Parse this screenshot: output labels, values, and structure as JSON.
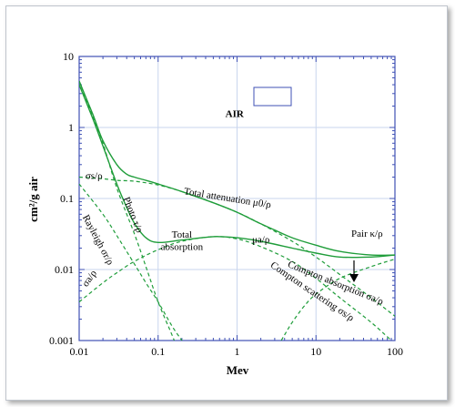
{
  "chart_data": {
    "type": "line",
    "title": "AIR",
    "xlabel": "Mev",
    "ylabel": "cm²/g air",
    "x_scale": "log",
    "y_scale": "log",
    "xlim": [
      0.01,
      100
    ],
    "ylim": [
      0.001,
      10
    ],
    "grid": true,
    "x_ticks": [
      {
        "value": 0.01,
        "label": "0.01"
      },
      {
        "value": 0.1,
        "label": "0.1"
      },
      {
        "value": 1,
        "label": "1"
      },
      {
        "value": 10,
        "label": "10"
      },
      {
        "value": 100,
        "label": "100"
      }
    ],
    "y_ticks": [
      {
        "value": 0.001,
        "label": "0.001"
      },
      {
        "value": 0.01,
        "label": "0.01"
      },
      {
        "value": 0.1,
        "label": "0.1"
      },
      {
        "value": 1,
        "label": "1"
      },
      {
        "value": 10,
        "label": "10"
      }
    ],
    "colors": {
      "curve": "#1f9d3a",
      "grid": "#c9d6ee",
      "border": "#3f51b5"
    },
    "series": [
      {
        "style": "solid",
        "points": [
          [
            0.01,
            4.5
          ],
          [
            0.015,
            1.5
          ],
          [
            0.02,
            0.65
          ],
          [
            0.03,
            0.3
          ],
          [
            0.04,
            0.22
          ],
          [
            0.05,
            0.2
          ],
          [
            0.07,
            0.18
          ],
          [
            0.1,
            0.16
          ],
          [
            0.2,
            0.125
          ],
          [
            0.5,
            0.087
          ],
          [
            1,
            0.064
          ],
          [
            2,
            0.044
          ],
          [
            3,
            0.036
          ],
          [
            5,
            0.028
          ],
          [
            10,
            0.022
          ],
          [
            20,
            0.018
          ],
          [
            50,
            0.016
          ],
          [
            100,
            0.016
          ]
        ]
      },
      {
        "style": "solid",
        "points": [
          [
            0.01,
            4.0
          ],
          [
            0.015,
            1.3
          ],
          [
            0.02,
            0.55
          ],
          [
            0.03,
            0.16
          ],
          [
            0.04,
            0.075
          ],
          [
            0.05,
            0.045
          ],
          [
            0.07,
            0.028
          ],
          [
            0.1,
            0.024
          ],
          [
            0.2,
            0.026
          ],
          [
            0.5,
            0.029
          ],
          [
            1,
            0.028
          ],
          [
            2,
            0.025
          ],
          [
            5,
            0.02
          ],
          [
            10,
            0.017
          ],
          [
            20,
            0.015
          ],
          [
            50,
            0.015
          ],
          [
            100,
            0.016
          ]
        ]
      },
      {
        "style": "dashed",
        "points": [
          [
            0.01,
            4.5
          ],
          [
            0.015,
            1.4
          ],
          [
            0.02,
            0.6
          ],
          [
            0.03,
            0.14
          ],
          [
            0.05,
            0.032
          ],
          [
            0.07,
            0.011
          ],
          [
            0.1,
            0.0035
          ],
          [
            0.15,
            0.0012
          ],
          [
            0.18,
            0.0007
          ]
        ]
      },
      {
        "style": "dashed",
        "points": [
          [
            0.01,
            0.2
          ],
          [
            0.02,
            0.19
          ],
          [
            0.03,
            0.18
          ],
          [
            0.05,
            0.175
          ],
          [
            0.1,
            0.155
          ],
          [
            0.2,
            0.125
          ],
          [
            0.5,
            0.087
          ],
          [
            1,
            0.064
          ],
          [
            2,
            0.044
          ],
          [
            5,
            0.025
          ],
          [
            10,
            0.015
          ],
          [
            20,
            0.0085
          ],
          [
            50,
            0.004
          ],
          [
            100,
            0.0022
          ]
        ]
      },
      {
        "style": "dashed",
        "points": [
          [
            0.01,
            0.16
          ],
          [
            0.02,
            0.06
          ],
          [
            0.03,
            0.03
          ],
          [
            0.05,
            0.012
          ],
          [
            0.07,
            0.0065
          ],
          [
            0.1,
            0.0035
          ],
          [
            0.15,
            0.0016
          ],
          [
            0.2,
            0.001
          ],
          [
            0.25,
            0.0007
          ]
        ]
      },
      {
        "style": "dashed",
        "points": [
          [
            0.01,
            0.0035
          ],
          [
            0.02,
            0.0065
          ],
          [
            0.03,
            0.009
          ],
          [
            0.05,
            0.013
          ],
          [
            0.1,
            0.019
          ],
          [
            0.2,
            0.025
          ],
          [
            0.5,
            0.029
          ],
          [
            1,
            0.027
          ],
          [
            2,
            0.021
          ],
          [
            5,
            0.013
          ],
          [
            10,
            0.0075
          ],
          [
            20,
            0.004
          ],
          [
            50,
            0.0018
          ],
          [
            100,
            0.0009
          ]
        ]
      },
      {
        "style": "dashed",
        "points": [
          [
            3,
            0.0007
          ],
          [
            4,
            0.0012
          ],
          [
            5,
            0.0018
          ],
          [
            7,
            0.003
          ],
          [
            10,
            0.0045
          ],
          [
            20,
            0.0075
          ],
          [
            50,
            0.011
          ],
          [
            100,
            0.014
          ]
        ]
      }
    ],
    "annotations": [
      {
        "id": "air",
        "text": "AIR",
        "x": 0.93,
        "y": 1.4
      },
      {
        "id": "sigs",
        "text": "σs/ρ",
        "x": 0.012,
        "y": 0.19
      },
      {
        "id": "totatt",
        "text": "Total attenuation μ0/ρ",
        "x": 0.21,
        "y": 0.115,
        "rotate": 9
      },
      {
        "id": "rayl",
        "text": "Rayleigh σr/ρ",
        "x": 0.011,
        "y": 0.055,
        "rotate": 62
      },
      {
        "id": "photo",
        "text": "Photo τ/ρ",
        "x": 0.036,
        "y": 0.1,
        "rotate": 68
      },
      {
        "id": "totabs1",
        "text": "Total",
        "x": 0.2,
        "y": 0.028
      },
      {
        "id": "totabs2",
        "text": "absorption",
        "x": 0.2,
        "y": 0.019
      },
      {
        "id": "mua",
        "text": "μa/ρ",
        "x": 1.55,
        "y": 0.024
      },
      {
        "id": "pair",
        "text": "Pair κ/ρ",
        "x": 28,
        "y": 0.029
      },
      {
        "id": "compabs",
        "text": "Compton absorption σa/ρ",
        "x": 4.3,
        "y": 0.011,
        "rotate": 22
      },
      {
        "id": "compsct",
        "text": "Compton scattering σs/ρ",
        "x": 2.6,
        "y": 0.011,
        "rotate": 34
      },
      {
        "id": "siga",
        "text": "σa/ρ",
        "x": 0.0125,
        "y": 0.0056,
        "rotate": -55
      }
    ]
  }
}
